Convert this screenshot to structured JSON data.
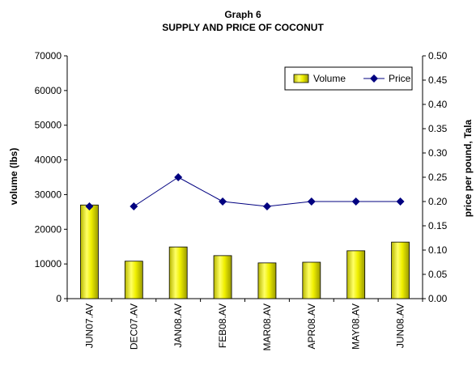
{
  "chart_data": {
    "type": "bar+line",
    "title": "Graph 6",
    "subtitle": "SUPPLY AND PRICE OF COCONUT",
    "ylabel": "volume (lbs)",
    "y2label": "price per pound, Tala",
    "ylim": [
      0,
      70000
    ],
    "y2lim": [
      0,
      0.5
    ],
    "yticks": [
      "0",
      "10000",
      "20000",
      "30000",
      "40000",
      "50000",
      "60000",
      "70000"
    ],
    "y2ticks": [
      "0.00",
      "0.05",
      "0.10",
      "0.15",
      "0.20",
      "0.25",
      "0.30",
      "0.35",
      "0.40",
      "0.45",
      "0.50"
    ],
    "categories": [
      "JUN07.AV",
      "DEC07.AV",
      "JAN08.AV",
      "FEB08.AV",
      "MAR08.AV",
      "APR08.AV",
      "MAY08.AV",
      "JUN08.AV"
    ],
    "series": [
      {
        "name": "Volume",
        "type": "bar",
        "axis": "left",
        "color": "#e8e800",
        "values": [
          27000,
          10800,
          14900,
          12400,
          10300,
          10500,
          13800,
          16300
        ]
      },
      {
        "name": "Price",
        "type": "line",
        "axis": "right",
        "color": "#000080",
        "values": [
          0.19,
          0.19,
          0.25,
          0.2,
          0.19,
          0.2,
          0.2,
          0.2
        ],
        "gaps_after": [
          0
        ]
      }
    ],
    "legend": "top-right",
    "grid": false
  }
}
